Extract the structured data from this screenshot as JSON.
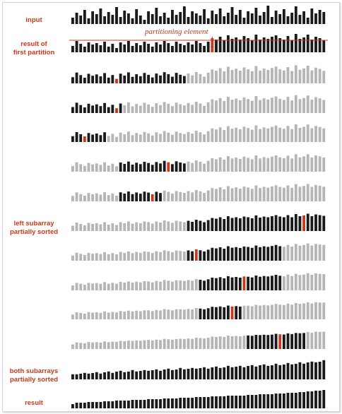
{
  "labels": {
    "input": "input",
    "first_partition": [
      "result of",
      "first partition"
    ],
    "left_subarray": [
      "left subarray",
      "partially sorted"
    ],
    "both_subarrays": [
      "both subarrays",
      "partially sorted"
    ],
    "result": "result"
  },
  "annotation": "partitioning element",
  "colors": {
    "black": "#1a1a1a",
    "gray": "#b5b5b5",
    "red": "#c8391c"
  },
  "diagram": {
    "n": 64,
    "input_values": [
      9,
      16,
      12,
      20,
      8,
      18,
      14,
      22,
      11,
      17,
      13,
      24,
      10,
      19,
      15,
      8,
      21,
      12,
      6,
      18,
      14,
      23,
      11,
      16,
      9,
      20,
      13,
      17,
      25,
      10,
      18,
      15,
      12,
      21,
      8,
      19,
      14,
      22,
      11,
      16,
      24,
      13,
      20,
      9,
      18,
      15,
      23,
      12,
      17,
      26,
      10,
      19,
      14,
      21,
      11,
      16,
      25,
      13,
      18,
      9,
      22,
      15,
      20,
      17
    ],
    "pivot_value": 17,
    "rows": [
      {
        "black": [
          0,
          28
        ],
        "pivot": 11
      },
      {
        "black": [
          0,
          12
        ],
        "pivot": 11
      },
      {
        "black": [
          0,
          8
        ],
        "pivot": 3
      },
      {
        "black": [
          12,
          28
        ],
        "pivot": 24
      },
      {
        "black": [
          12,
          22
        ],
        "pivot": 20
      },
      {
        "black": [
          29,
          63
        ],
        "pivot": 58
      },
      {
        "black": [
          29,
          52
        ],
        "pivot": 31
      },
      {
        "black": [
          32,
          52
        ],
        "pivot": 43
      },
      {
        "black": [
          32,
          42
        ],
        "pivot": 40
      },
      {
        "black": [
          44,
          58
        ],
        "pivot": 52
      }
    ]
  }
}
